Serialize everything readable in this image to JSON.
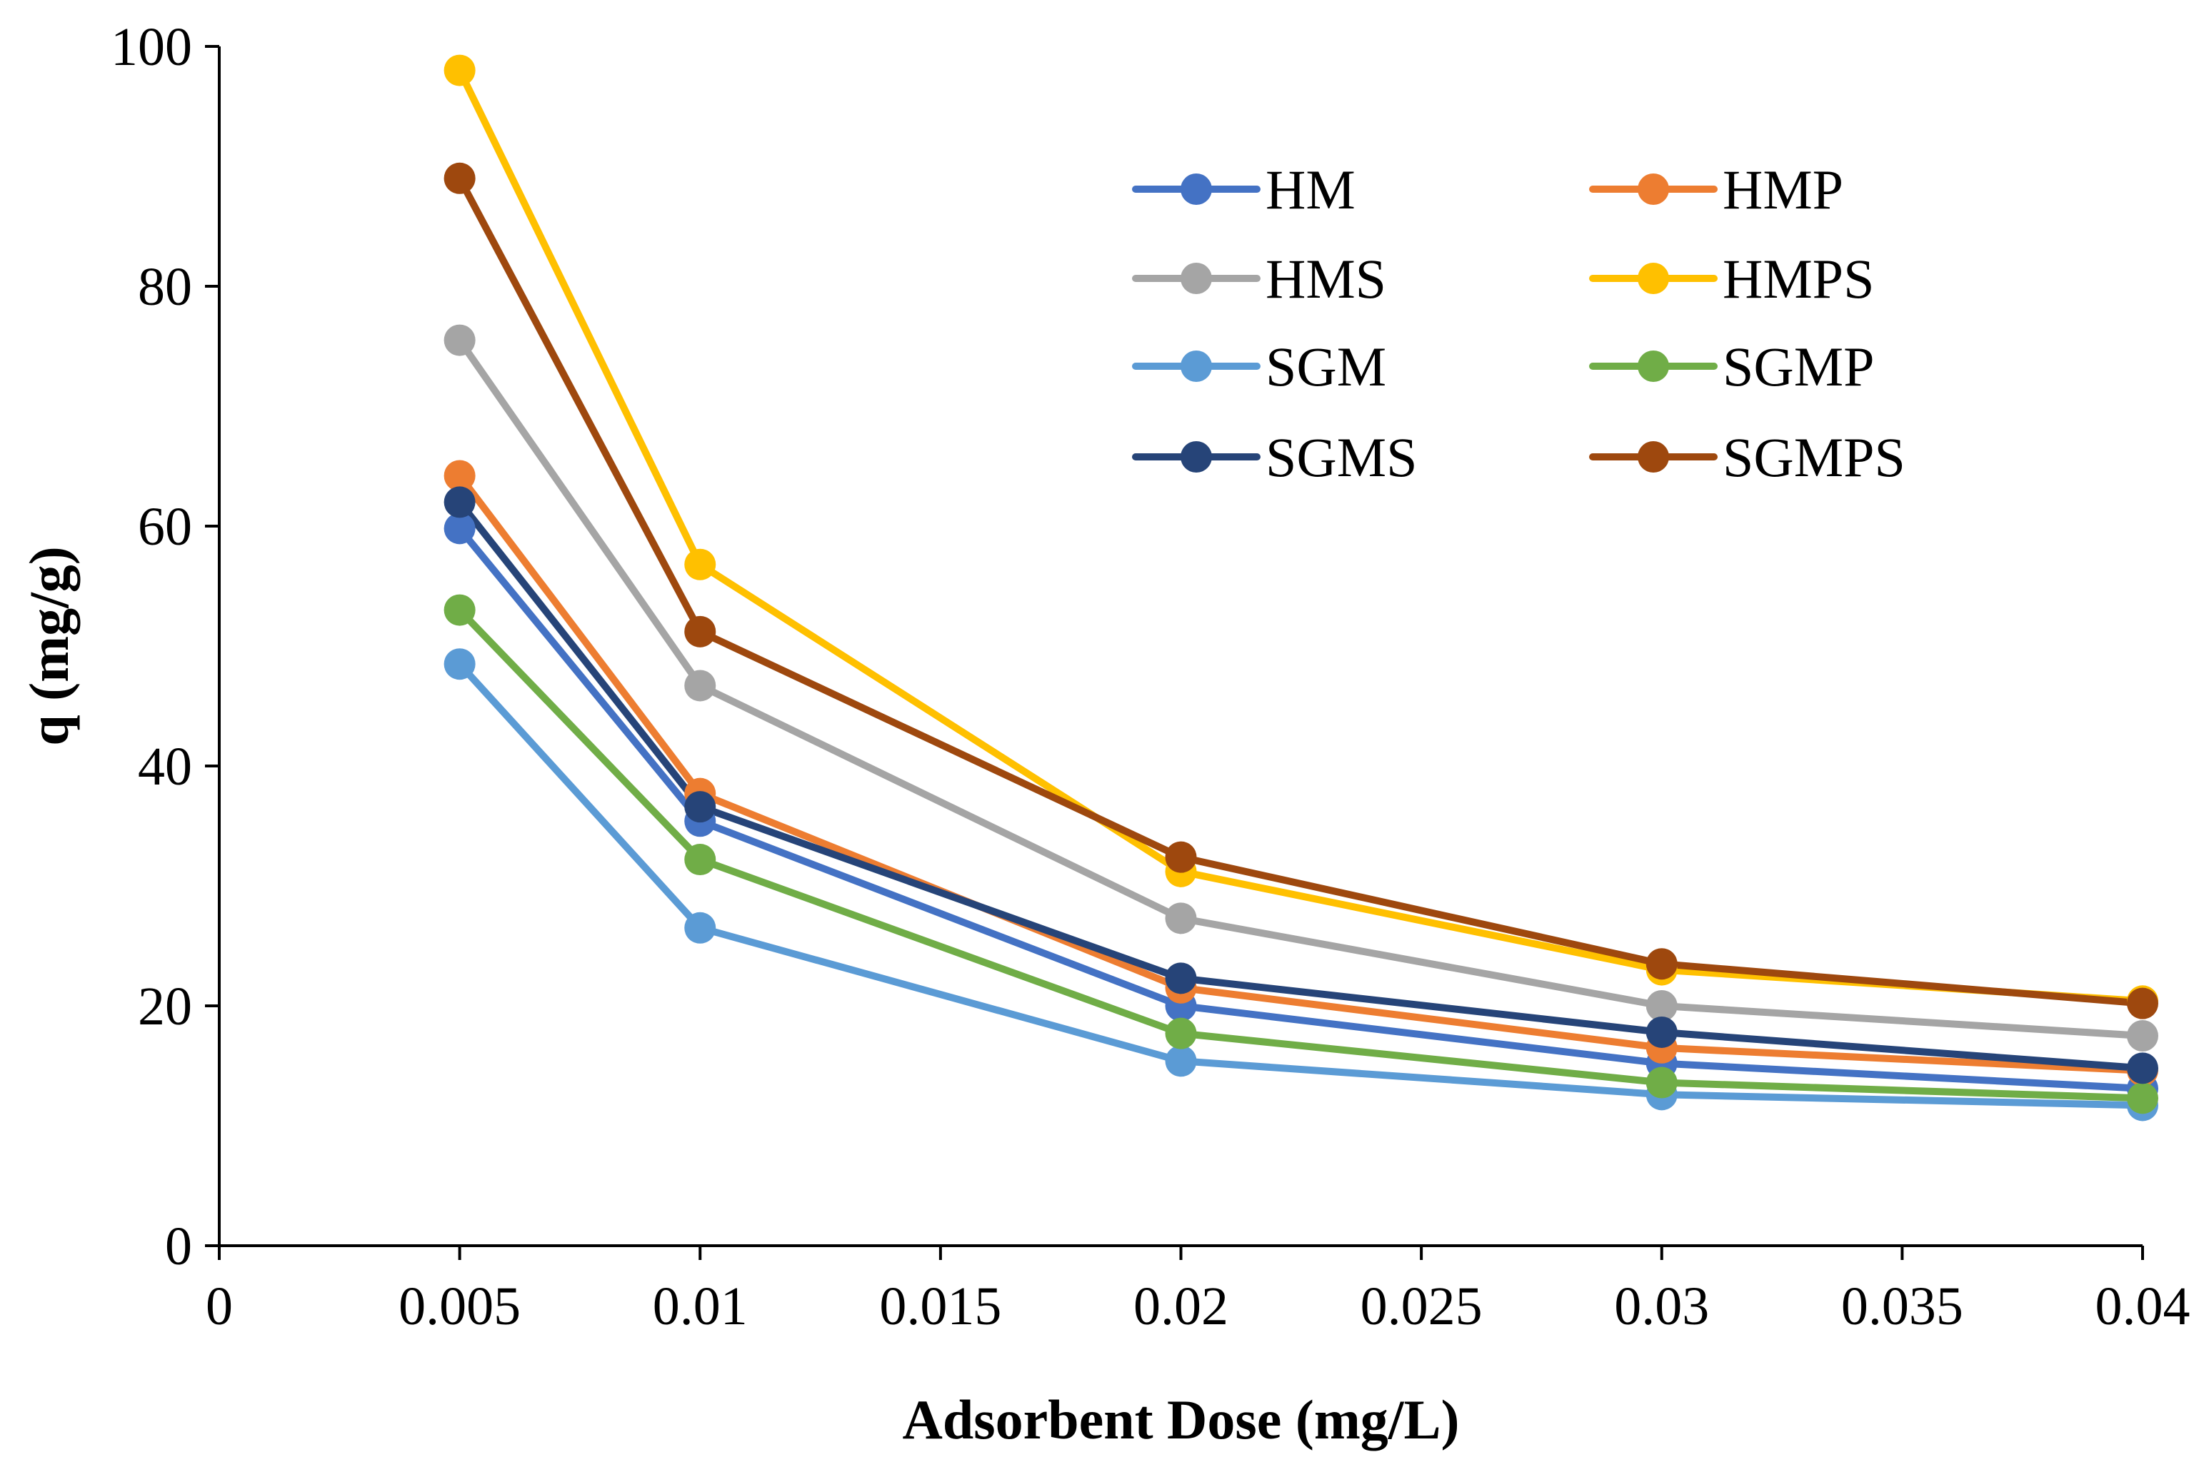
{
  "chart_data": {
    "type": "line",
    "title": "",
    "xlabel": "Adsorbent Dose (mg/L)",
    "ylabel": "q (mg/g)",
    "xlim": [
      0,
      0.04
    ],
    "ylim": [
      0,
      100
    ],
    "x_ticks": [
      0,
      0.005,
      0.01,
      0.015,
      0.02,
      0.025,
      0.03,
      0.035,
      0.04
    ],
    "x_tick_labels": [
      "0",
      "0.005",
      "0.01",
      "0.015",
      "0.02",
      "0.025",
      "0.03",
      "0.035",
      "0.04"
    ],
    "y_ticks": [
      0,
      20,
      40,
      60,
      80,
      100
    ],
    "y_tick_labels": [
      "0",
      "20",
      "40",
      "60",
      "80",
      "100"
    ],
    "grid": false,
    "legend_position": "top-right",
    "x": [
      0.005,
      0.01,
      0.02,
      0.03,
      0.04
    ],
    "series": [
      {
        "name": "HM",
        "color": "#4472C4",
        "values": [
          59.8,
          35.4,
          20.0,
          15.2,
          13.1
        ]
      },
      {
        "name": "HMP",
        "color": "#ED7D31",
        "values": [
          64.2,
          37.7,
          21.5,
          16.5,
          14.6
        ]
      },
      {
        "name": "HMS",
        "color": "#A5A5A5",
        "values": [
          75.5,
          46.7,
          27.3,
          20.0,
          17.5
        ]
      },
      {
        "name": "HMPS",
        "color": "#FFC000",
        "values": [
          98.0,
          56.8,
          31.2,
          23.0,
          20.4
        ]
      },
      {
        "name": "SGM",
        "color": "#5B9BD5",
        "values": [
          48.5,
          26.5,
          15.4,
          12.6,
          11.7
        ]
      },
      {
        "name": "SGMP",
        "color": "#70AD47",
        "values": [
          53.0,
          32.2,
          17.7,
          13.6,
          12.3
        ]
      },
      {
        "name": "SGMS",
        "color": "#264478",
        "values": [
          62.0,
          36.6,
          22.3,
          17.8,
          14.8
        ]
      },
      {
        "name": "SGMPS",
        "color": "#9E480E",
        "values": [
          89.0,
          51.2,
          32.4,
          23.5,
          20.2
        ]
      }
    ]
  }
}
